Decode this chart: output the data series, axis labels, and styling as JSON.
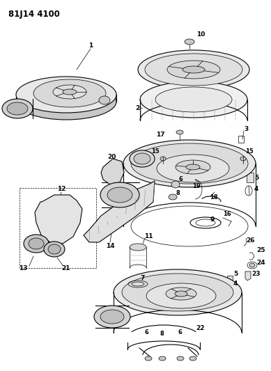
{
  "title": "81J14 4100",
  "bg_color": "#ffffff",
  "lw_thin": 0.5,
  "lw_med": 0.8,
  "lw_thick": 1.1,
  "gray_light": "#e8e8e8",
  "gray_mid": "#c8c8c8",
  "gray_dark": "#a0a0a0",
  "label_fs": 6.0,
  "title_fs": 8.5
}
